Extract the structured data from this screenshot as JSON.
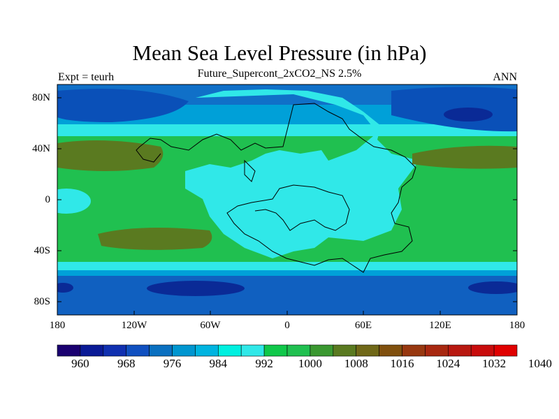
{
  "title": "Mean Sea Level Pressure (in hPa)",
  "subtitle": "Future_Supercont_2xCO2_NS 2.5%",
  "left_label": "Expt = teurh",
  "right_label": "ANN",
  "lat_ticks": [
    "80N",
    "40N",
    "0",
    "40S",
    "80S"
  ],
  "lon_ticks": [
    "180",
    "120W",
    "60W",
    "0",
    "60E",
    "120E",
    "180"
  ],
  "colorbar": {
    "colors": [
      "#1a0070",
      "#0a1a96",
      "#1030b0",
      "#1050c0",
      "#0a70c0",
      "#0096d0",
      "#00b4e0",
      "#00f0e0",
      "#30e8e8",
      "#10c84a",
      "#20c050",
      "#3a9830",
      "#5a7a20",
      "#706818",
      "#80500e",
      "#983810",
      "#a82810",
      "#b81810",
      "#c80c0c",
      "#e00000"
    ],
    "labels": [
      "960",
      "968",
      "976",
      "984",
      "992",
      "1000",
      "1008",
      "1016",
      "1024",
      "1032",
      "1040"
    ]
  },
  "map_colors": {
    "low_deep": "#0a2a96",
    "low": "#1050c0",
    "mid_low": "#00a0d8",
    "cyan": "#30e8e8",
    "green_light": "#10c84a",
    "green": "#20c050",
    "olive": "#5a7a20"
  }
}
